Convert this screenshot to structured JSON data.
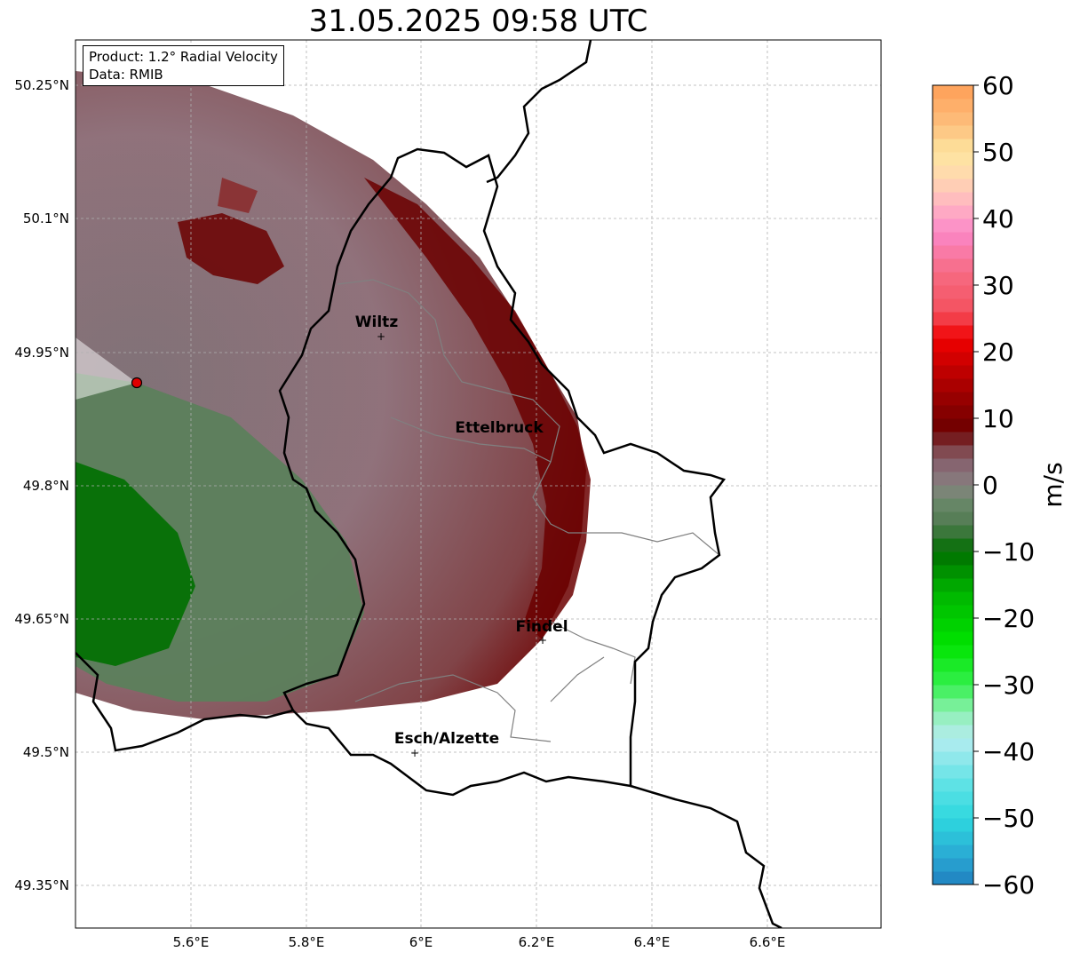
{
  "title": "31.05.2025 09:58 UTC",
  "info": {
    "product": "Product: 1.2° Radial Velocity",
    "source": "Data: RMIB"
  },
  "axes": {
    "lon_ticks": [
      "5.6°E",
      "5.8°E",
      "6°E",
      "6.2°E",
      "6.4°E",
      "6.6°E"
    ],
    "lat_ticks": [
      "50.25°N",
      "50.1°N",
      "49.95°N",
      "49.8°N",
      "49.65°N",
      "49.5°N",
      "49.35°N"
    ]
  },
  "colorbar": {
    "unit": "m/s",
    "ticks": [
      "60",
      "50",
      "40",
      "30",
      "20",
      "10",
      "0",
      "−10",
      "−20",
      "−30",
      "−40",
      "−50",
      "−60"
    ],
    "range": [
      -60,
      60
    ]
  },
  "cities": [
    {
      "name": "Wiltz"
    },
    {
      "name": "Ettelbruck"
    },
    {
      "name": "Findel"
    },
    {
      "name": "Esch/Alzette"
    }
  ]
}
